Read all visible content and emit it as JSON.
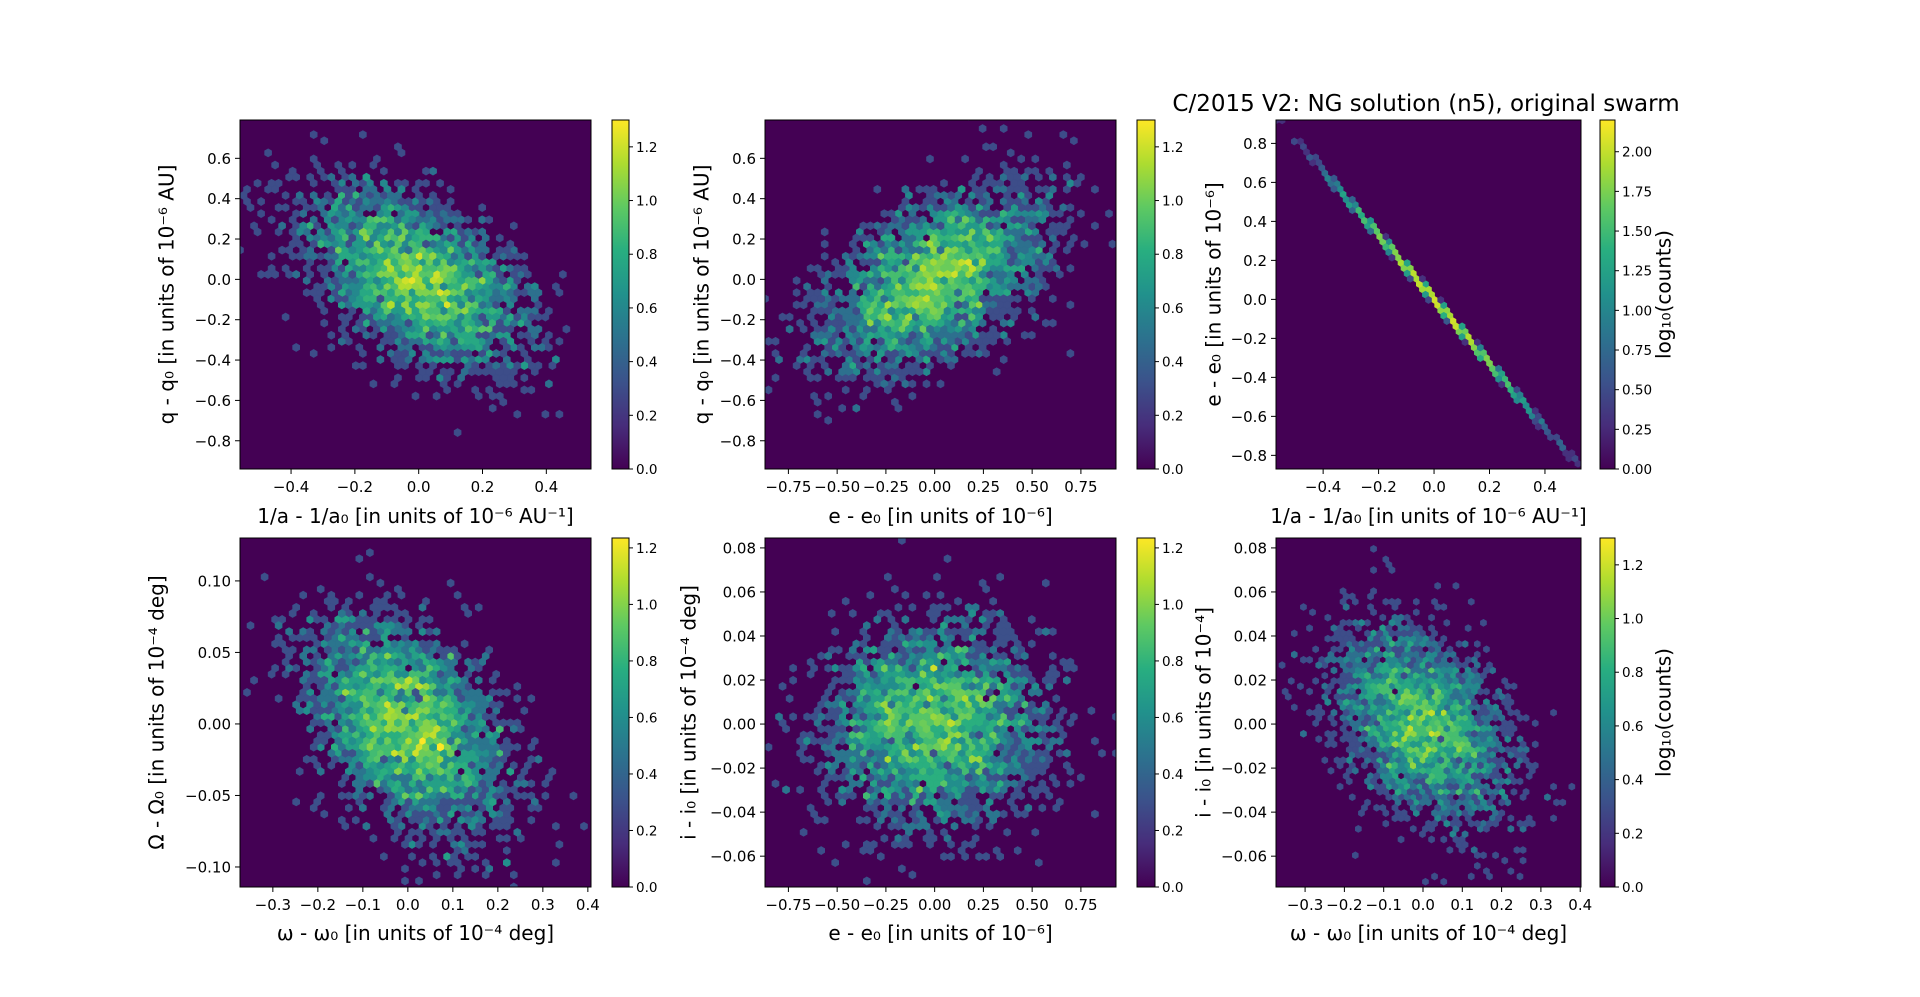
{
  "title": "C/2015 V2: NG solution (n5),  original swarm",
  "chart_data": [
    {
      "type": "heatmap",
      "subtype": "hexbin",
      "xlabel": "1/a - 1/a₀ [in units of 10⁻⁶ AU⁻¹]",
      "ylabel": "q - q₀ [in units of 10⁻⁶ AU]",
      "xlim": [
        -0.56,
        0.54
      ],
      "ylim": [
        -0.94,
        0.79
      ],
      "xticks": [
        -0.4,
        -0.2,
        0.0,
        0.2,
        0.4
      ],
      "xtick_labels": [
        "−0.4",
        "−0.2",
        "0.0",
        "0.2",
        "0.4"
      ],
      "yticks": [
        0.6,
        0.4,
        0.2,
        0.0,
        -0.2,
        -0.4,
        -0.6,
        -0.8
      ],
      "ytick_labels": [
        "0.6",
        "0.4",
        "0.2",
        "0.0",
        "−0.2",
        "−0.4",
        "−0.6",
        "−0.8"
      ],
      "colorbar": {
        "vmin": 0,
        "vmax": 1.3,
        "ticks": [
          0,
          0.2,
          0.4,
          0.6,
          0.8,
          1.0,
          1.2
        ],
        "tick_labels": [
          "0.0",
          "0.2",
          "0.4",
          "0.6",
          "0.8",
          "1.0",
          "1.2"
        ],
        "label": ""
      },
      "distribution": {
        "n": 3000,
        "mean": [
          0,
          0
        ],
        "sigma": [
          0.17,
          0.22
        ],
        "corr": -0.5
      }
    },
    {
      "type": "heatmap",
      "subtype": "hexbin",
      "xlabel": "e - e₀ [in units of 10⁻⁶]",
      "ylabel": "q - q₀ [in units of 10⁻⁶ AU]",
      "xlim": [
        -0.87,
        0.93
      ],
      "ylim": [
        -0.94,
        0.79
      ],
      "xticks": [
        -0.75,
        -0.5,
        -0.25,
        0.0,
        0.25,
        0.5,
        0.75
      ],
      "xtick_labels": [
        "−0.75",
        "−0.50",
        "−0.25",
        "0.00",
        "0.25",
        "0.50",
        "0.75"
      ],
      "yticks": [
        0.6,
        0.4,
        0.2,
        0.0,
        -0.2,
        -0.4,
        -0.6,
        -0.8
      ],
      "ytick_labels": [
        "0.6",
        "0.4",
        "0.2",
        "0.0",
        "−0.2",
        "−0.4",
        "−0.6",
        "−0.8"
      ],
      "colorbar": {
        "vmin": 0,
        "vmax": 1.3,
        "ticks": [
          0,
          0.2,
          0.4,
          0.6,
          0.8,
          1.0,
          1.2
        ],
        "tick_labels": [
          "0.0",
          "0.2",
          "0.4",
          "0.6",
          "0.8",
          "1.0",
          "1.2"
        ],
        "label": ""
      },
      "distribution": {
        "n": 3000,
        "mean": [
          0,
          0
        ],
        "sigma": [
          0.28,
          0.22
        ],
        "corr": 0.5
      }
    },
    {
      "type": "heatmap",
      "subtype": "hexbin",
      "xlabel": "1/a - 1/a₀ [in units of 10⁻⁶ AU⁻¹]",
      "ylabel": "e - e₀ [in units of 10⁻⁶]",
      "xlim": [
        -0.57,
        0.53
      ],
      "ylim": [
        -0.87,
        0.92
      ],
      "xticks": [
        -0.4,
        -0.2,
        0.0,
        0.2,
        0.4
      ],
      "xtick_labels": [
        "−0.4",
        "−0.2",
        "0.0",
        "0.2",
        "0.4"
      ],
      "yticks": [
        0.8,
        0.6,
        0.4,
        0.2,
        0.0,
        -0.2,
        -0.4,
        -0.6,
        -0.8
      ],
      "ytick_labels": [
        "0.8",
        "0.6",
        "0.4",
        "0.2",
        "0.0",
        "−0.2",
        "−0.4",
        "−0.6",
        "−0.8"
      ],
      "colorbar": {
        "vmin": 0,
        "vmax": 2.2,
        "ticks": [
          0,
          0.25,
          0.5,
          0.75,
          1.0,
          1.25,
          1.5,
          1.75,
          2.0
        ],
        "tick_labels": [
          "0.00",
          "0.25",
          "0.50",
          "0.75",
          "1.00",
          "1.25",
          "1.50",
          "1.75",
          "2.00"
        ],
        "label": "log₁₀(counts)"
      },
      "distribution": {
        "n": 3000,
        "mean": [
          0,
          0
        ],
        "sigma": [
          0.17,
          0.28
        ],
        "corr": -1.0,
        "slope": -1.65
      }
    },
    {
      "type": "heatmap",
      "subtype": "hexbin",
      "xlabel": "ω - ω₀ [in units of 10⁻⁴ deg]",
      "ylabel": "Ω - Ω₀ [in units of 10⁻⁴ deg]",
      "xlim": [
        -0.373,
        0.407
      ],
      "ylim": [
        -0.114,
        0.13
      ],
      "xticks": [
        -0.3,
        -0.2,
        -0.1,
        0.0,
        0.1,
        0.2,
        0.3,
        0.4
      ],
      "xtick_labels": [
        "−0.3",
        "−0.2",
        "−0.1",
        "0.0",
        "0.1",
        "0.2",
        "0.3",
        "0.4"
      ],
      "yticks": [
        0.1,
        0.05,
        0.0,
        -0.05,
        -0.1
      ],
      "ytick_labels": [
        "0.10",
        "0.05",
        "0.00",
        "−0.05",
        "−0.10"
      ],
      "colorbar": {
        "vmin": 0,
        "vmax": 1.235,
        "ticks": [
          0,
          0.2,
          0.4,
          0.6,
          0.8,
          1.0,
          1.2
        ],
        "tick_labels": [
          "0.0",
          "0.2",
          "0.4",
          "0.6",
          "0.8",
          "1.0",
          "1.2"
        ],
        "label": ""
      },
      "distribution": {
        "n": 3000,
        "mean": [
          0,
          0
        ],
        "sigma": [
          0.11,
          0.036
        ],
        "corr": -0.4
      }
    },
    {
      "type": "heatmap",
      "subtype": "hexbin",
      "xlabel": "e - e₀ [in units of 10⁻⁶]",
      "ylabel": "i - i₀ [in units of 10⁻⁴ deg]",
      "xlim": [
        -0.87,
        0.93
      ],
      "ylim": [
        -0.074,
        0.0845
      ],
      "xticks": [
        -0.75,
        -0.5,
        -0.25,
        0.0,
        0.25,
        0.5,
        0.75
      ],
      "xtick_labels": [
        "−0.75",
        "−0.50",
        "−0.25",
        "0.00",
        "0.25",
        "0.50",
        "0.75"
      ],
      "yticks": [
        0.08,
        0.06,
        0.04,
        0.02,
        0.0,
        -0.02,
        -0.04,
        -0.06
      ],
      "ytick_labels": [
        "0.08",
        "0.06",
        "0.04",
        "0.02",
        "0.00",
        "−0.02",
        "−0.04",
        "−0.06"
      ],
      "colorbar": {
        "vmin": 0,
        "vmax": 1.235,
        "ticks": [
          0,
          0.2,
          0.4,
          0.6,
          0.8,
          1.0,
          1.2
        ],
        "tick_labels": [
          "0.0",
          "0.2",
          "0.4",
          "0.6",
          "0.8",
          "1.0",
          "1.2"
        ],
        "label": ""
      },
      "distribution": {
        "n": 3000,
        "mean": [
          0,
          0
        ],
        "sigma": [
          0.28,
          0.022
        ],
        "corr": 0.05
      }
    },
    {
      "type": "heatmap",
      "subtype": "hexbin",
      "xlabel": "ω - ω₀ [in units of 10⁻⁴ deg]",
      "ylabel": "i - i₀ [in units of 10⁻⁴]",
      "xlim": [
        -0.374,
        0.402
      ],
      "ylim": [
        -0.074,
        0.0845
      ],
      "xticks": [
        -0.3,
        -0.2,
        -0.1,
        0.0,
        0.1,
        0.2,
        0.3,
        0.4
      ],
      "xtick_labels": [
        "−0.3",
        "−0.2",
        "−0.1",
        "0.0",
        "0.1",
        "0.2",
        "0.3",
        "0.4"
      ],
      "yticks": [
        0.08,
        0.06,
        0.04,
        0.02,
        0.0,
        -0.02,
        -0.04,
        -0.06
      ],
      "ytick_labels": [
        "0.08",
        "0.06",
        "0.04",
        "0.02",
        "0.00",
        "−0.02",
        "−0.04",
        "−0.06"
      ],
      "colorbar": {
        "vmin": 0,
        "vmax": 1.3,
        "ticks": [
          0,
          0.2,
          0.4,
          0.6,
          0.8,
          1.0,
          1.2
        ],
        "tick_labels": [
          "0.0",
          "0.2",
          "0.4",
          "0.6",
          "0.8",
          "1.0",
          "1.2"
        ],
        "label": "log₁₀(counts)"
      },
      "distribution": {
        "n": 3000,
        "mean": [
          0,
          0
        ],
        "sigma": [
          0.11,
          0.022
        ],
        "corr": -0.4
      }
    }
  ]
}
